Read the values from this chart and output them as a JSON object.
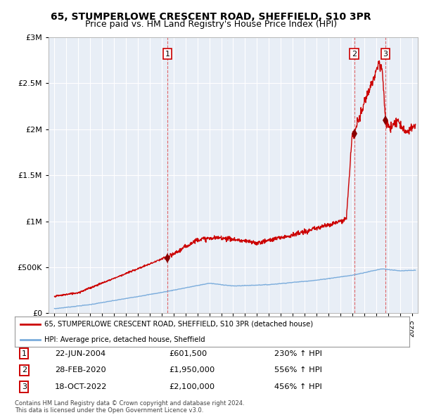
{
  "title": "65, STUMPERLOWE CRESCENT ROAD, SHEFFIELD, S10 3PR",
  "subtitle": "Price paid vs. HM Land Registry's House Price Index (HPI)",
  "title_fontsize": 10,
  "subtitle_fontsize": 9,
  "background_color": "#ffffff",
  "plot_bg_color": "#e8eef6",
  "grid_color": "#ffffff",
  "ylim": [
    0,
    3000000
  ],
  "yticks": [
    0,
    500000,
    1000000,
    1500000,
    2000000,
    2500000,
    3000000
  ],
  "ytick_labels": [
    "£0",
    "£500K",
    "£1M",
    "£1.5M",
    "£2M",
    "£2.5M",
    "£3M"
  ],
  "sale_year_floats": [
    2004.47,
    2020.16,
    2022.79
  ],
  "sale_prices": [
    601500,
    1950000,
    2100000
  ],
  "sale_labels": [
    "1",
    "2",
    "3"
  ],
  "red_line_color": "#cc0000",
  "blue_line_color": "#7aacdc",
  "sale_marker_color": "#880000",
  "vline_color": "#dd4444",
  "legend_entries": [
    "65, STUMPERLOWE CRESCENT ROAD, SHEFFIELD, S10 3PR (detached house)",
    "HPI: Average price, detached house, Sheffield"
  ],
  "table_data": [
    [
      "1",
      "22-JUN-2004",
      "£601,500",
      "230% ↑ HPI"
    ],
    [
      "2",
      "28-FEB-2020",
      "£1,950,000",
      "556% ↑ HPI"
    ],
    [
      "3",
      "18-OCT-2022",
      "£2,100,000",
      "456% ↑ HPI"
    ]
  ],
  "footnote": "Contains HM Land Registry data © Crown copyright and database right 2024.\nThis data is licensed under the Open Government Licence v3.0.",
  "xstart": 1994.5,
  "xend": 2025.5
}
